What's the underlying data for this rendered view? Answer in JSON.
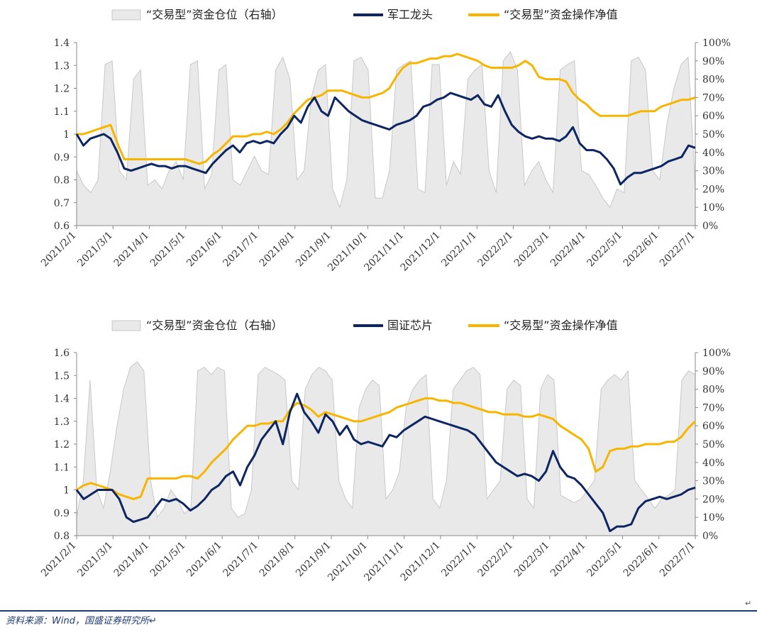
{
  "source_note": "资料来源：Wind，国盛证券研究所↵",
  "corner_mark": "↵",
  "colors": {
    "area": "#e9e9e9",
    "area_stroke": "#c8c8c8",
    "navy": "#0d2560",
    "gold": "#f7b500",
    "axis": "#888888"
  },
  "chart_data": [
    {
      "type": "line",
      "legend": {
        "area": "“交易型”资金仓位（右轴）",
        "navy": "军工龙头",
        "gold": "“交易型”资金操作净值"
      },
      "ylim": [
        0.6,
        1.4
      ],
      "yticks": [
        "0.6",
        "0.7",
        "0.8",
        "0.9",
        "1",
        "1.1",
        "1.2",
        "1.3",
        "1.4"
      ],
      "y2lim": [
        0,
        100
      ],
      "y2ticks": [
        "0%",
        "10%",
        "20%",
        "30%",
        "40%",
        "50%",
        "60%",
        "70%",
        "80%",
        "90%",
        "100%"
      ],
      "x_labels": [
        "2021/2/1",
        "2021/3/1",
        "2021/4/1",
        "2021/5/1",
        "2021/6/1",
        "2021/7/1",
        "2021/8/1",
        "2021/9/1",
        "2021/10/1",
        "2021/11/1",
        "2021/12/1",
        "2022/1/1",
        "2022/2/1",
        "2022/3/1",
        "2022/4/1",
        "2022/5/1",
        "2022/6/1",
        "2022/7/1"
      ],
      "area_pct": [
        30,
        22,
        18,
        25,
        88,
        90,
        30,
        25,
        80,
        85,
        22,
        25,
        20,
        30,
        35,
        25,
        88,
        90,
        20,
        28,
        85,
        88,
        25,
        22,
        30,
        38,
        30,
        28,
        85,
        92,
        80,
        25,
        30,
        70,
        85,
        88,
        20,
        10,
        25,
        90,
        92,
        85,
        15,
        15,
        30,
        85,
        88,
        90,
        20,
        18,
        88,
        88,
        22,
        35,
        28,
        80,
        85,
        88,
        30,
        18,
        90,
        95,
        85,
        22,
        30,
        35,
        25,
        18,
        85,
        88,
        90,
        30,
        28,
        22,
        15,
        10,
        20,
        18,
        90,
        92,
        85,
        30,
        25,
        55,
        75,
        88,
        92,
        20
      ],
      "navy": [
        1.0,
        0.95,
        0.98,
        0.99,
        1.0,
        0.98,
        0.92,
        0.85,
        0.84,
        0.85,
        0.86,
        0.87,
        0.86,
        0.86,
        0.85,
        0.86,
        0.86,
        0.85,
        0.84,
        0.83,
        0.87,
        0.9,
        0.93,
        0.95,
        0.92,
        0.96,
        0.97,
        0.96,
        0.97,
        0.96,
        1.0,
        1.03,
        1.08,
        1.05,
        1.12,
        1.16,
        1.1,
        1.08,
        1.16,
        1.13,
        1.1,
        1.08,
        1.06,
        1.05,
        1.04,
        1.03,
        1.02,
        1.04,
        1.05,
        1.06,
        1.08,
        1.12,
        1.13,
        1.15,
        1.16,
        1.18,
        1.17,
        1.16,
        1.15,
        1.17,
        1.13,
        1.12,
        1.17,
        1.1,
        1.04,
        1.01,
        0.99,
        0.98,
        0.99,
        0.98,
        0.98,
        0.97,
        0.99,
        1.03,
        0.96,
        0.93,
        0.93,
        0.92,
        0.89,
        0.85,
        0.78,
        0.81,
        0.83,
        0.83,
        0.84,
        0.85,
        0.86,
        0.88,
        0.89,
        0.9,
        0.95,
        0.94
      ],
      "gold": [
        1.0,
        1.0,
        1.01,
        1.02,
        1.03,
        1.04,
        0.96,
        0.89,
        0.89,
        0.89,
        0.89,
        0.89,
        0.89,
        0.89,
        0.89,
        0.89,
        0.89,
        0.88,
        0.87,
        0.88,
        0.91,
        0.93,
        0.96,
        0.99,
        0.99,
        0.99,
        1.0,
        1.0,
        1.01,
        1.0,
        1.02,
        1.05,
        1.09,
        1.12,
        1.15,
        1.16,
        1.17,
        1.19,
        1.19,
        1.19,
        1.18,
        1.17,
        1.16,
        1.16,
        1.17,
        1.18,
        1.2,
        1.25,
        1.29,
        1.31,
        1.31,
        1.32,
        1.33,
        1.33,
        1.34,
        1.34,
        1.35,
        1.34,
        1.33,
        1.32,
        1.3,
        1.29,
        1.29,
        1.29,
        1.29,
        1.3,
        1.32,
        1.3,
        1.25,
        1.24,
        1.24,
        1.24,
        1.23,
        1.18,
        1.15,
        1.13,
        1.1,
        1.08,
        1.08,
        1.08,
        1.08,
        1.08,
        1.09,
        1.1,
        1.1,
        1.1,
        1.12,
        1.13,
        1.14,
        1.15,
        1.15,
        1.16
      ]
    },
    {
      "type": "line",
      "legend": {
        "area": "“交易型”资金仓位（右轴）",
        "navy": "国证芯片",
        "gold": "“交易型”资金操作净值"
      },
      "ylim": [
        0.8,
        1.6
      ],
      "yticks": [
        "0.8",
        "0.9",
        "1",
        "1.1",
        "1.2",
        "1.3",
        "1.4",
        "1.5",
        "1.6"
      ],
      "y2lim": [
        0,
        100
      ],
      "y2ticks": [
        "0%",
        "10%",
        "20%",
        "30%",
        "40%",
        "50%",
        "60%",
        "70%",
        "80%",
        "90%",
        "100%"
      ],
      "x_labels": [
        "2021/2/1",
        "2021/3/1",
        "2021/4/1",
        "2021/5/1",
        "2021/6/1",
        "2021/7/1",
        "2021/8/1",
        "2021/9/1",
        "2021/10/1",
        "2021/11/1",
        "2021/12/1",
        "2022/1/1",
        "2022/2/1",
        "2022/3/1",
        "2022/4/1",
        "2022/5/1",
        "2022/6/1",
        "2022/7/1"
      ],
      "area_pct": [
        10,
        30,
        85,
        25,
        15,
        35,
        60,
        80,
        92,
        95,
        90,
        30,
        10,
        15,
        25,
        20,
        12,
        15,
        90,
        92,
        88,
        92,
        90,
        15,
        10,
        12,
        25,
        88,
        92,
        90,
        88,
        85,
        30,
        25,
        80,
        88,
        92,
        90,
        85,
        30,
        20,
        15,
        70,
        80,
        85,
        82,
        20,
        25,
        35,
        70,
        80,
        85,
        88,
        20,
        15,
        30,
        80,
        85,
        90,
        92,
        88,
        20,
        25,
        30,
        80,
        85,
        82,
        20,
        15,
        80,
        88,
        85,
        22,
        20,
        18,
        20,
        25,
        30,
        80,
        85,
        88,
        85,
        90,
        30,
        25,
        20,
        15,
        20,
        22,
        25,
        85,
        90,
        88
      ],
      "navy": [
        1.0,
        0.96,
        0.98,
        1.0,
        1.0,
        1.0,
        0.96,
        0.88,
        0.86,
        0.87,
        0.88,
        0.92,
        0.96,
        0.95,
        0.96,
        0.94,
        0.91,
        0.93,
        0.96,
        1.0,
        1.02,
        1.06,
        1.08,
        1.02,
        1.1,
        1.15,
        1.22,
        1.26,
        1.3,
        1.2,
        1.34,
        1.42,
        1.34,
        1.3,
        1.25,
        1.33,
        1.3,
        1.24,
        1.28,
        1.22,
        1.2,
        1.21,
        1.2,
        1.19,
        1.24,
        1.23,
        1.26,
        1.28,
        1.3,
        1.32,
        1.31,
        1.3,
        1.29,
        1.28,
        1.27,
        1.26,
        1.24,
        1.2,
        1.16,
        1.12,
        1.1,
        1.08,
        1.06,
        1.07,
        1.06,
        1.04,
        1.08,
        1.17,
        1.1,
        1.06,
        1.05,
        1.02,
        0.98,
        0.94,
        0.9,
        0.82,
        0.84,
        0.84,
        0.85,
        0.92,
        0.95,
        0.96,
        0.97,
        0.96,
        0.97,
        0.98,
        1.0,
        1.01
      ],
      "gold": [
        1.0,
        1.02,
        1.03,
        1.02,
        1.01,
        1.0,
        0.98,
        0.97,
        0.96,
        0.97,
        1.05,
        1.05,
        1.05,
        1.05,
        1.05,
        1.06,
        1.06,
        1.05,
        1.08,
        1.12,
        1.15,
        1.18,
        1.22,
        1.25,
        1.28,
        1.28,
        1.29,
        1.29,
        1.3,
        1.3,
        1.35,
        1.38,
        1.37,
        1.35,
        1.32,
        1.34,
        1.33,
        1.32,
        1.31,
        1.3,
        1.3,
        1.31,
        1.32,
        1.33,
        1.34,
        1.36,
        1.37,
        1.38,
        1.39,
        1.4,
        1.4,
        1.39,
        1.39,
        1.38,
        1.38,
        1.37,
        1.36,
        1.35,
        1.34,
        1.34,
        1.33,
        1.33,
        1.33,
        1.32,
        1.32,
        1.33,
        1.32,
        1.31,
        1.28,
        1.26,
        1.24,
        1.22,
        1.18,
        1.08,
        1.1,
        1.17,
        1.18,
        1.18,
        1.19,
        1.19,
        1.2,
        1.2,
        1.2,
        1.21,
        1.21,
        1.23,
        1.27,
        1.3
      ]
    }
  ]
}
